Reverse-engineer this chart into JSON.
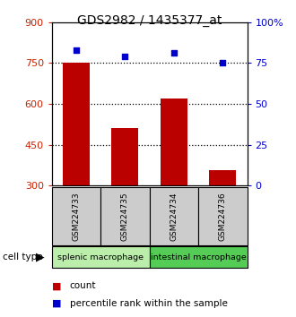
{
  "title": "GDS2982 / 1435377_at",
  "samples": [
    "GSM224733",
    "GSM224735",
    "GSM224734",
    "GSM224736"
  ],
  "counts": [
    750,
    510,
    620,
    355
  ],
  "percentiles": [
    83,
    79,
    81,
    75
  ],
  "ylim_left": [
    300,
    900
  ],
  "ylim_right": [
    0,
    100
  ],
  "yticks_left": [
    300,
    450,
    600,
    750,
    900
  ],
  "yticks_right": [
    0,
    25,
    50,
    75,
    100
  ],
  "hlines": [
    750,
    600,
    450
  ],
  "bar_color": "#bb0000",
  "dot_color": "#0000cc",
  "cell_types": [
    {
      "label": "splenic macrophage",
      "samples": [
        0,
        1
      ],
      "color": "#bbeeaa"
    },
    {
      "label": "intestinal macrophage",
      "samples": [
        2,
        3
      ],
      "color": "#55cc55"
    }
  ],
  "sample_box_color": "#cccccc",
  "background_color": "#ffffff",
  "bar_width": 0.55,
  "title_fontsize": 10,
  "tick_fontsize": 8,
  "label_fontsize": 7.5
}
